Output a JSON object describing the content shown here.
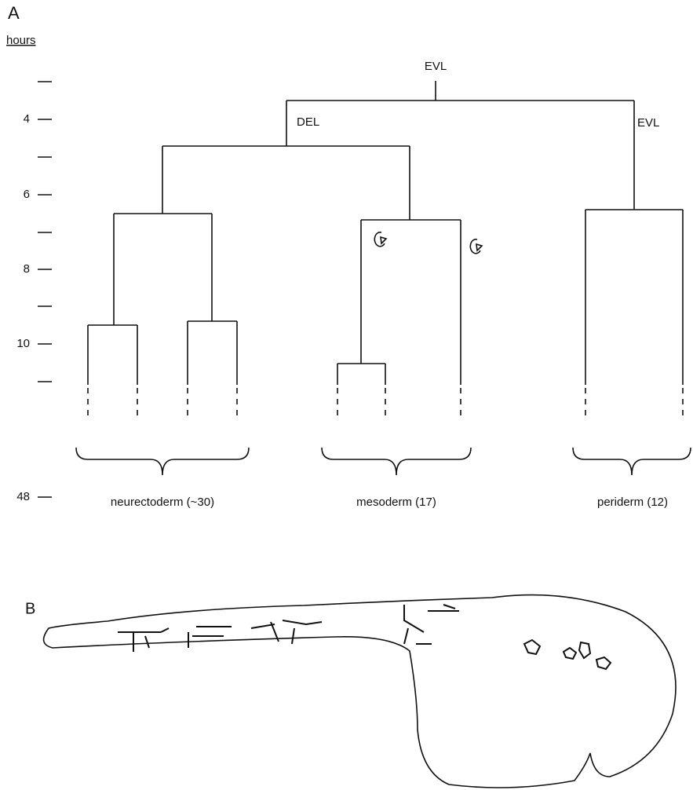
{
  "panel_a": {
    "label": "A",
    "axis_title": "hours",
    "ticks": [
      "4",
      "6",
      "8",
      "10",
      "48"
    ],
    "nodes": [
      "EVL",
      "DEL",
      "EVL"
    ],
    "groups": [
      "neurectoderm (~30)",
      "mesoderm (17)",
      "periderm (12)"
    ]
  },
  "panel_b": {
    "label": "B"
  }
}
